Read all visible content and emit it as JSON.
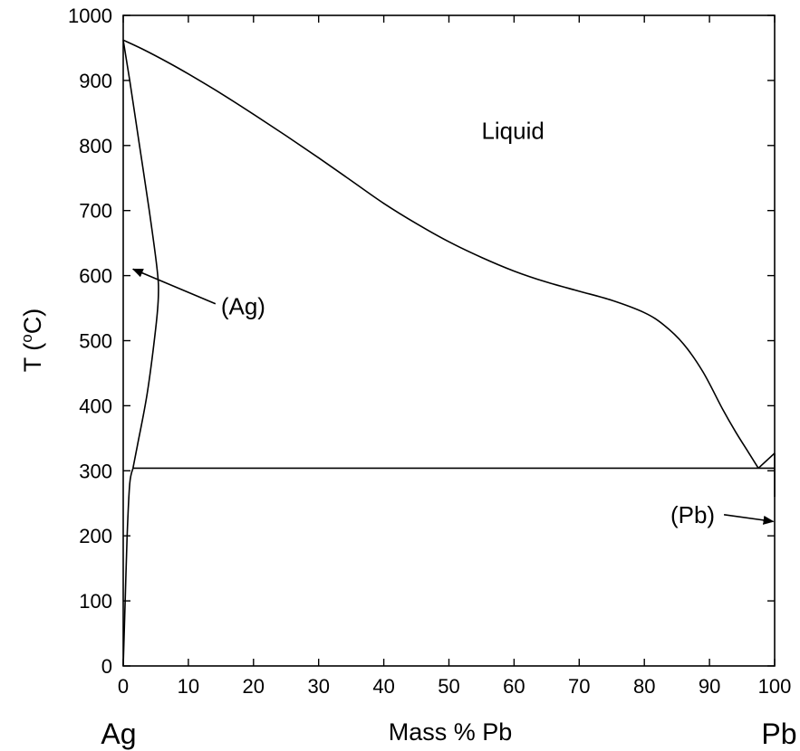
{
  "chart_data": {
    "type": "line",
    "subtype": "phase-diagram",
    "title": "",
    "xlabel": "Mass % Pb",
    "ylabel_main": "T (",
    "ylabel_sup": "o",
    "ylabel_tail": "C)",
    "xlim": [
      0,
      100
    ],
    "ylim": [
      0,
      1000
    ],
    "x_ticks": [
      0,
      10,
      20,
      30,
      40,
      50,
      60,
      70,
      80,
      90,
      100
    ],
    "y_ticks": [
      0,
      100,
      200,
      300,
      400,
      500,
      600,
      700,
      800,
      900,
      1000
    ],
    "left_component": "Ag",
    "right_component": "Pb",
    "grid": false,
    "series": [
      {
        "name": "",
        "role": "liquidus",
        "points": [
          [
            0,
            962
          ],
          [
            3,
            948
          ],
          [
            7,
            927
          ],
          [
            10,
            910
          ],
          [
            15,
            880
          ],
          [
            20,
            848
          ],
          [
            25,
            815
          ],
          [
            30,
            781
          ],
          [
            35,
            746
          ],
          [
            40,
            711
          ],
          [
            45,
            680
          ],
          [
            50,
            652
          ],
          [
            55,
            628
          ],
          [
            60,
            607
          ],
          [
            65,
            590
          ],
          [
            70,
            576
          ],
          [
            75,
            562
          ],
          [
            80,
            543
          ],
          [
            83,
            524
          ],
          [
            86,
            495
          ],
          [
            89,
            452
          ],
          [
            92,
            395
          ],
          [
            94,
            360
          ],
          [
            96,
            328
          ],
          [
            97.5,
            304
          ]
        ]
      },
      {
        "name": "",
        "role": "solidus",
        "points": [
          [
            0,
            962
          ],
          [
            1,
            900
          ],
          [
            2.5,
            800
          ],
          [
            4,
            700
          ],
          [
            5.2,
            610
          ],
          [
            5.4,
            570
          ],
          [
            5,
            520
          ],
          [
            3.7,
            420
          ],
          [
            2.2,
            340
          ],
          [
            1.5,
            304
          ]
        ]
      },
      {
        "name": "",
        "role": "solvus",
        "points": [
          [
            1.5,
            304
          ],
          [
            1,
            280
          ],
          [
            0.6,
            200
          ],
          [
            0.3,
            100
          ],
          [
            0,
            0
          ]
        ]
      },
      {
        "name": "",
        "role": "eutectic-isotherm",
        "points": [
          [
            1.5,
            304
          ],
          [
            100,
            304
          ]
        ]
      },
      {
        "name": "",
        "role": "pb-liquidus",
        "points": [
          [
            97.5,
            304
          ],
          [
            100,
            327
          ]
        ]
      },
      {
        "name": "",
        "role": "pb-solidus",
        "points": [
          [
            100,
            327
          ],
          [
            100,
            260
          ]
        ]
      }
    ],
    "annotations": [
      {
        "text": "Liquid",
        "x": 55,
        "y": 810,
        "arrow": false
      },
      {
        "text": "(Ag)",
        "x": 15,
        "y": 540,
        "arrow": true,
        "arrow_to": [
          1.5,
          610
        ]
      },
      {
        "text": "(Pb)",
        "x": 84,
        "y": 220,
        "arrow": true,
        "arrow_to": [
          99.8,
          222
        ]
      }
    ]
  }
}
